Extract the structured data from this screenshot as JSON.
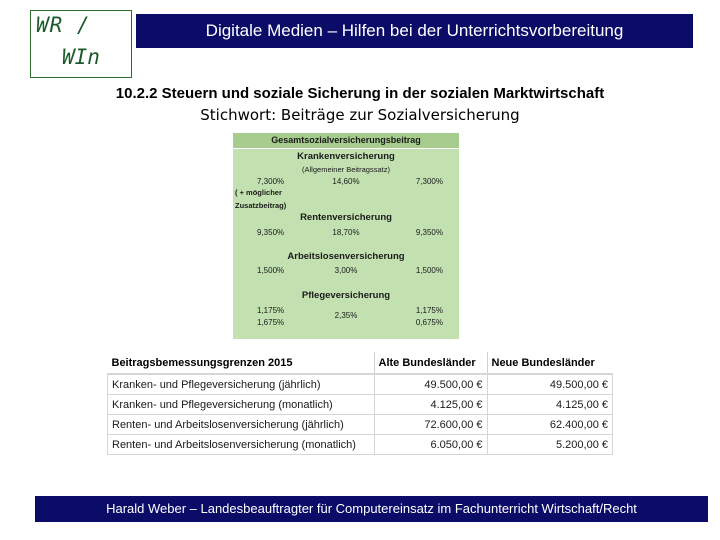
{
  "logo": {
    "line1": "WR /",
    "line2": "WIn"
  },
  "header": {
    "title": "Digitale Medien – Hilfen bei der Unterrichtsvorbereitung"
  },
  "section": {
    "heading": "10.2.2  Steuern und soziale Sicherung in der sozialen Marktwirtschaft",
    "subtitle": "Stichwort: Beiträge zur Sozialversicherung"
  },
  "contributions": {
    "title": "Gesamtsozialversicherungsbeitrag",
    "kranken": {
      "label": "Krankenversicherung",
      "note": "(Allgemeiner Beitragssatz)",
      "employee": "7,300%",
      "total": "14,60%",
      "employer": "7,300%",
      "extra_line1": "( + möglicher",
      "extra_line2": "Zusatzbeitrag)"
    },
    "renten": {
      "label": "Rentenversicherung",
      "employee": "9,350%",
      "total": "18,70%",
      "employer": "9,350%"
    },
    "arbeitslosen": {
      "label": "Arbeitslosenversicherung",
      "employee": "1,500%",
      "total": "3,00%",
      "employer": "1,500%"
    },
    "pflege": {
      "label": "Pflegeversicherung",
      "employee_1": "1,175%",
      "employee_2": "1,675%",
      "total": "2,35%",
      "employer_1": "1,175%",
      "employer_2": "0,675%"
    }
  },
  "limits": {
    "headers": [
      "Beitragsbemessungsgrenzen 2015",
      "Alte Bundesländer",
      "Neue Bundesländer"
    ],
    "rows": [
      [
        "Kranken- und Pflegeversicherung (jährlich)",
        "49.500,00 €",
        "49.500,00 €"
      ],
      [
        "Kranken- und Pflegeversicherung (monatlich)",
        "4.125,00 €",
        "4.125,00 €"
      ],
      [
        "Renten- und Arbeitslosenversicherung (jährlich)",
        "72.600,00 €",
        "62.400,00 €"
      ],
      [
        "Renten- und Arbeitslosenversicherung (monatlich)",
        "6.050,00 €",
        "5.200,00 €"
      ]
    ]
  },
  "footer": {
    "text": "Harald Weber – Landesbeauftragter für Computereinsatz im Fachunterricht Wirtschaft/Recht"
  },
  "colors": {
    "header_bg": "#0b0b68",
    "logo_green": "#1c5a2a",
    "box_bg": "#c2e0b0",
    "box_title_bg": "#a6cc8e"
  }
}
